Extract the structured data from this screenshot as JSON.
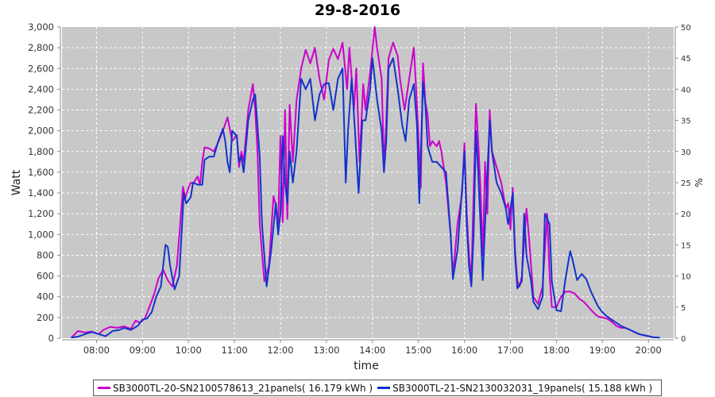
{
  "chart_data": {
    "type": "line",
    "title": "29-8-2016",
    "xlabel": "time",
    "ylabel_left": "Watt",
    "ylabel_right": "%",
    "x_unit": "hours",
    "xlim": [
      7.25,
      20.55
    ],
    "x_ticks": [
      "08:00",
      "09:00",
      "10:00",
      "11:00",
      "12:00",
      "13:00",
      "14:00",
      "15:00",
      "16:00",
      "17:00",
      "18:00",
      "19:00",
      "20:00"
    ],
    "ylim_left": [
      0,
      3000
    ],
    "y_ticks_left": [
      "0",
      "200",
      "400",
      "600",
      "800",
      "1,000",
      "1,200",
      "1,400",
      "1,600",
      "1,800",
      "2,000",
      "2,200",
      "2,400",
      "2,600",
      "2,800",
      "3,000"
    ],
    "ylim_right": [
      0,
      50
    ],
    "y_ticks_right": [
      "0",
      "5",
      "10",
      "15",
      "20",
      "25",
      "30",
      "35",
      "40",
      "45",
      "50"
    ],
    "grid": true,
    "legend_position": "bottom",
    "series": [
      {
        "name": "SB3000TL-20-SN2100578613_21panels( 16.179 kWh )",
        "color": "#cc00cc",
        "points": [
          [
            7.45,
            5
          ],
          [
            7.6,
            70
          ],
          [
            7.75,
            55
          ],
          [
            7.9,
            65
          ],
          [
            8.05,
            40
          ],
          [
            8.15,
            80
          ],
          [
            8.3,
            110
          ],
          [
            8.45,
            100
          ],
          [
            8.6,
            115
          ],
          [
            8.75,
            90
          ],
          [
            8.85,
            170
          ],
          [
            8.95,
            150
          ],
          [
            9.05,
            190
          ],
          [
            9.15,
            300
          ],
          [
            9.25,
            420
          ],
          [
            9.35,
            580
          ],
          [
            9.45,
            660
          ],
          [
            9.55,
            560
          ],
          [
            9.65,
            500
          ],
          [
            9.75,
            700
          ],
          [
            9.82,
            1100
          ],
          [
            9.88,
            1460
          ],
          [
            9.93,
            1350
          ],
          [
            10.0,
            1450
          ],
          [
            10.05,
            1500
          ],
          [
            10.1,
            1490
          ],
          [
            10.2,
            1560
          ],
          [
            10.25,
            1480
          ],
          [
            10.3,
            1700
          ],
          [
            10.35,
            1840
          ],
          [
            10.45,
            1830
          ],
          [
            10.55,
            1800
          ],
          [
            10.65,
            1890
          ],
          [
            10.75,
            2000
          ],
          [
            10.85,
            2130
          ],
          [
            10.95,
            1900
          ],
          [
            11.05,
            1960
          ],
          [
            11.1,
            1650
          ],
          [
            11.15,
            1800
          ],
          [
            11.2,
            1700
          ],
          [
            11.3,
            2200
          ],
          [
            11.4,
            2450
          ],
          [
            11.45,
            2200
          ],
          [
            11.5,
            1800
          ],
          [
            11.55,
            1100
          ],
          [
            11.65,
            550
          ],
          [
            11.75,
            700
          ],
          [
            11.85,
            1370
          ],
          [
            11.9,
            1280
          ],
          [
            11.95,
            1100
          ],
          [
            12.0,
            1950
          ],
          [
            12.05,
            1120
          ],
          [
            12.1,
            2200
          ],
          [
            12.15,
            1150
          ],
          [
            12.2,
            2250
          ],
          [
            12.27,
            1700
          ],
          [
            12.35,
            2300
          ],
          [
            12.45,
            2600
          ],
          [
            12.55,
            2780
          ],
          [
            12.65,
            2650
          ],
          [
            12.75,
            2800
          ],
          [
            12.85,
            2500
          ],
          [
            12.95,
            2300
          ],
          [
            13.05,
            2680
          ],
          [
            13.15,
            2790
          ],
          [
            13.25,
            2690
          ],
          [
            13.35,
            2850
          ],
          [
            13.45,
            2400
          ],
          [
            13.5,
            2800
          ],
          [
            13.55,
            2500
          ],
          [
            13.6,
            2200
          ],
          [
            13.65,
            2600
          ],
          [
            13.72,
            1700
          ],
          [
            13.8,
            2450
          ],
          [
            13.85,
            2200
          ],
          [
            13.95,
            2560
          ],
          [
            14.05,
            3000
          ],
          [
            14.1,
            2800
          ],
          [
            14.2,
            2500
          ],
          [
            14.25,
            1650
          ],
          [
            14.3,
            2100
          ],
          [
            14.35,
            2700
          ],
          [
            14.45,
            2850
          ],
          [
            14.55,
            2720
          ],
          [
            14.6,
            2500
          ],
          [
            14.7,
            2200
          ],
          [
            14.8,
            2500
          ],
          [
            14.9,
            2800
          ],
          [
            14.97,
            2250
          ],
          [
            15.05,
            1450
          ],
          [
            15.1,
            2650
          ],
          [
            15.15,
            2280
          ],
          [
            15.2,
            2150
          ],
          [
            15.25,
            1850
          ],
          [
            15.3,
            1900
          ],
          [
            15.4,
            1850
          ],
          [
            15.45,
            1900
          ],
          [
            15.5,
            1800
          ],
          [
            15.6,
            1500
          ],
          [
            15.7,
            1000
          ],
          [
            15.75,
            600
          ],
          [
            15.85,
            1100
          ],
          [
            15.95,
            1400
          ],
          [
            16.0,
            1880
          ],
          [
            16.05,
            1200
          ],
          [
            16.1,
            800
          ],
          [
            16.15,
            560
          ],
          [
            16.25,
            2260
          ],
          [
            16.3,
            1900
          ],
          [
            16.35,
            1450
          ],
          [
            16.4,
            800
          ],
          [
            16.45,
            1700
          ],
          [
            16.5,
            1200
          ],
          [
            16.55,
            2200
          ],
          [
            16.6,
            1800
          ],
          [
            16.7,
            1650
          ],
          [
            16.8,
            1500
          ],
          [
            16.9,
            1250
          ],
          [
            16.95,
            1300
          ],
          [
            17.0,
            1050
          ],
          [
            17.05,
            1450
          ],
          [
            17.1,
            850
          ],
          [
            17.15,
            550
          ],
          [
            17.2,
            500
          ],
          [
            17.25,
            600
          ],
          [
            17.35,
            1250
          ],
          [
            17.4,
            1000
          ],
          [
            17.45,
            700
          ],
          [
            17.5,
            400
          ],
          [
            17.6,
            330
          ],
          [
            17.7,
            500
          ],
          [
            17.8,
            1200
          ],
          [
            17.85,
            620
          ],
          [
            17.9,
            300
          ],
          [
            18.0,
            300
          ],
          [
            18.1,
            400
          ],
          [
            18.2,
            450
          ],
          [
            18.3,
            450
          ],
          [
            18.4,
            430
          ],
          [
            18.5,
            380
          ],
          [
            18.6,
            350
          ],
          [
            18.7,
            300
          ],
          [
            18.8,
            250
          ],
          [
            18.9,
            210
          ],
          [
            19.0,
            200
          ],
          [
            19.1,
            190
          ],
          [
            19.2,
            160
          ],
          [
            19.3,
            120
          ],
          [
            19.4,
            100
          ],
          [
            19.5,
            100
          ],
          [
            19.6,
            80
          ],
          [
            19.7,
            60
          ],
          [
            19.8,
            40
          ],
          [
            19.9,
            30
          ],
          [
            20.0,
            20
          ],
          [
            20.1,
            10
          ],
          [
            20.2,
            8
          ]
        ]
      },
      {
        "name": "SB3000TL-21-SN2130032031_19panels( 15.188 kWh )",
        "color": "#1133cc",
        "points": [
          [
            7.45,
            5
          ],
          [
            7.6,
            15
          ],
          [
            7.75,
            40
          ],
          [
            7.9,
            60
          ],
          [
            8.05,
            40
          ],
          [
            8.2,
            20
          ],
          [
            8.35,
            70
          ],
          [
            8.5,
            80
          ],
          [
            8.6,
            100
          ],
          [
            8.75,
            80
          ],
          [
            8.9,
            120
          ],
          [
            9.0,
            180
          ],
          [
            9.1,
            190
          ],
          [
            9.2,
            250
          ],
          [
            9.3,
            400
          ],
          [
            9.4,
            500
          ],
          [
            9.5,
            900
          ],
          [
            9.55,
            880
          ],
          [
            9.6,
            700
          ],
          [
            9.7,
            470
          ],
          [
            9.8,
            600
          ],
          [
            9.85,
            1000
          ],
          [
            9.9,
            1400
          ],
          [
            9.95,
            1300
          ],
          [
            10.05,
            1360
          ],
          [
            10.1,
            1500
          ],
          [
            10.2,
            1480
          ],
          [
            10.3,
            1480
          ],
          [
            10.35,
            1720
          ],
          [
            10.45,
            1750
          ],
          [
            10.55,
            1750
          ],
          [
            10.65,
            1900
          ],
          [
            10.75,
            2020
          ],
          [
            10.8,
            1900
          ],
          [
            10.85,
            1700
          ],
          [
            10.9,
            1600
          ],
          [
            10.95,
            2000
          ],
          [
            11.05,
            1950
          ],
          [
            11.1,
            1700
          ],
          [
            11.15,
            1750
          ],
          [
            11.2,
            1600
          ],
          [
            11.3,
            2100
          ],
          [
            11.4,
            2300
          ],
          [
            11.45,
            2350
          ],
          [
            11.5,
            2050
          ],
          [
            11.55,
            1750
          ],
          [
            11.6,
            1100
          ],
          [
            11.7,
            500
          ],
          [
            11.8,
            850
          ],
          [
            11.9,
            1300
          ],
          [
            11.95,
            1000
          ],
          [
            12.0,
            1200
          ],
          [
            12.05,
            1950
          ],
          [
            12.1,
            1500
          ],
          [
            12.15,
            1300
          ],
          [
            12.2,
            1800
          ],
          [
            12.27,
            1500
          ],
          [
            12.35,
            1800
          ],
          [
            12.45,
            2500
          ],
          [
            12.55,
            2400
          ],
          [
            12.65,
            2500
          ],
          [
            12.75,
            2100
          ],
          [
            12.85,
            2350
          ],
          [
            12.95,
            2450
          ],
          [
            13.05,
            2460
          ],
          [
            13.15,
            2200
          ],
          [
            13.25,
            2500
          ],
          [
            13.35,
            2600
          ],
          [
            13.42,
            1500
          ],
          [
            13.47,
            2000
          ],
          [
            13.55,
            2500
          ],
          [
            13.62,
            2000
          ],
          [
            13.7,
            1400
          ],
          [
            13.78,
            2100
          ],
          [
            13.85,
            2100
          ],
          [
            13.95,
            2400
          ],
          [
            14.0,
            2700
          ],
          [
            14.1,
            2300
          ],
          [
            14.2,
            2000
          ],
          [
            14.25,
            1600
          ],
          [
            14.3,
            1900
          ],
          [
            14.35,
            2600
          ],
          [
            14.45,
            2700
          ],
          [
            14.55,
            2400
          ],
          [
            14.65,
            2050
          ],
          [
            14.72,
            1900
          ],
          [
            14.8,
            2300
          ],
          [
            14.9,
            2450
          ],
          [
            14.97,
            2050
          ],
          [
            15.02,
            1300
          ],
          [
            15.1,
            2470
          ],
          [
            15.15,
            2250
          ],
          [
            15.2,
            1850
          ],
          [
            15.3,
            1700
          ],
          [
            15.4,
            1700
          ],
          [
            15.5,
            1650
          ],
          [
            15.6,
            1600
          ],
          [
            15.7,
            1000
          ],
          [
            15.75,
            570
          ],
          [
            15.85,
            850
          ],
          [
            15.95,
            1450
          ],
          [
            16.0,
            1800
          ],
          [
            16.05,
            1100
          ],
          [
            16.1,
            700
          ],
          [
            16.15,
            500
          ],
          [
            16.2,
            1000
          ],
          [
            16.25,
            2000
          ],
          [
            16.3,
            1600
          ],
          [
            16.35,
            1100
          ],
          [
            16.4,
            560
          ],
          [
            16.45,
            1100
          ],
          [
            16.55,
            2100
          ],
          [
            16.6,
            1800
          ],
          [
            16.7,
            1500
          ],
          [
            16.8,
            1400
          ],
          [
            16.9,
            1250
          ],
          [
            16.95,
            1100
          ],
          [
            17.05,
            1400
          ],
          [
            17.1,
            800
          ],
          [
            17.15,
            480
          ],
          [
            17.25,
            550
          ],
          [
            17.3,
            1200
          ],
          [
            17.35,
            800
          ],
          [
            17.45,
            550
          ],
          [
            17.5,
            350
          ],
          [
            17.6,
            280
          ],
          [
            17.7,
            400
          ],
          [
            17.75,
            1200
          ],
          [
            17.85,
            1100
          ],
          [
            17.9,
            550
          ],
          [
            18.0,
            270
          ],
          [
            18.1,
            260
          ],
          [
            18.2,
            580
          ],
          [
            18.3,
            840
          ],
          [
            18.35,
            760
          ],
          [
            18.45,
            560
          ],
          [
            18.55,
            620
          ],
          [
            18.65,
            570
          ],
          [
            18.75,
            450
          ],
          [
            18.9,
            310
          ],
          [
            19.0,
            250
          ],
          [
            19.1,
            210
          ],
          [
            19.2,
            180
          ],
          [
            19.3,
            150
          ],
          [
            19.4,
            120
          ],
          [
            19.5,
            100
          ],
          [
            19.6,
            80
          ],
          [
            19.7,
            60
          ],
          [
            19.8,
            40
          ],
          [
            19.9,
            30
          ],
          [
            20.0,
            20
          ],
          [
            20.1,
            10
          ],
          [
            20.25,
            5
          ]
        ]
      }
    ]
  }
}
